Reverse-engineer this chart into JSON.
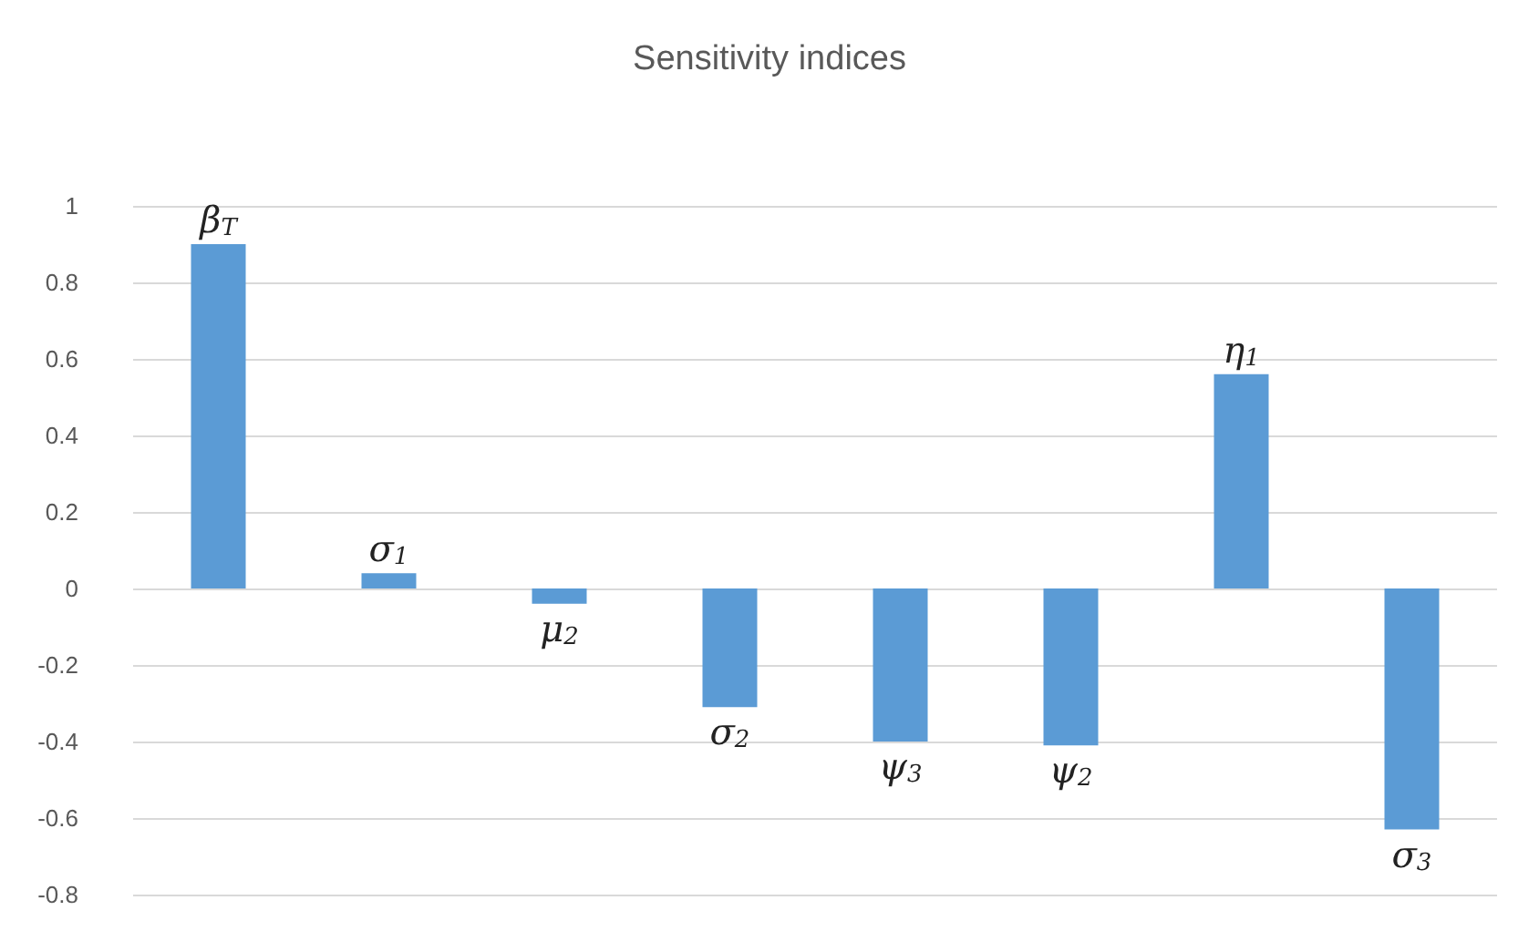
{
  "chart_data": {
    "type": "bar",
    "title": "Sensitivity indices",
    "categories": [
      "β$_{T}$",
      "σ$_{1}$",
      "μ$_{2}$",
      "σ$_{2}$",
      "ψ$_{3}$",
      "ψ$_{2}$",
      "η$_{1}$",
      "σ$_{3}$"
    ],
    "values": [
      0.9,
      0.04,
      -0.04,
      -0.31,
      -0.4,
      -0.41,
      0.56,
      -0.63
    ],
    "color": "#5b9bd5",
    "ylim": [
      -0.8,
      1
    ],
    "yticks": [
      -0.8,
      -0.6,
      -0.4,
      -0.2,
      0,
      0.2,
      0.4,
      0.6,
      0.8,
      1
    ],
    "grid": "y",
    "tick_labels": "y"
  }
}
